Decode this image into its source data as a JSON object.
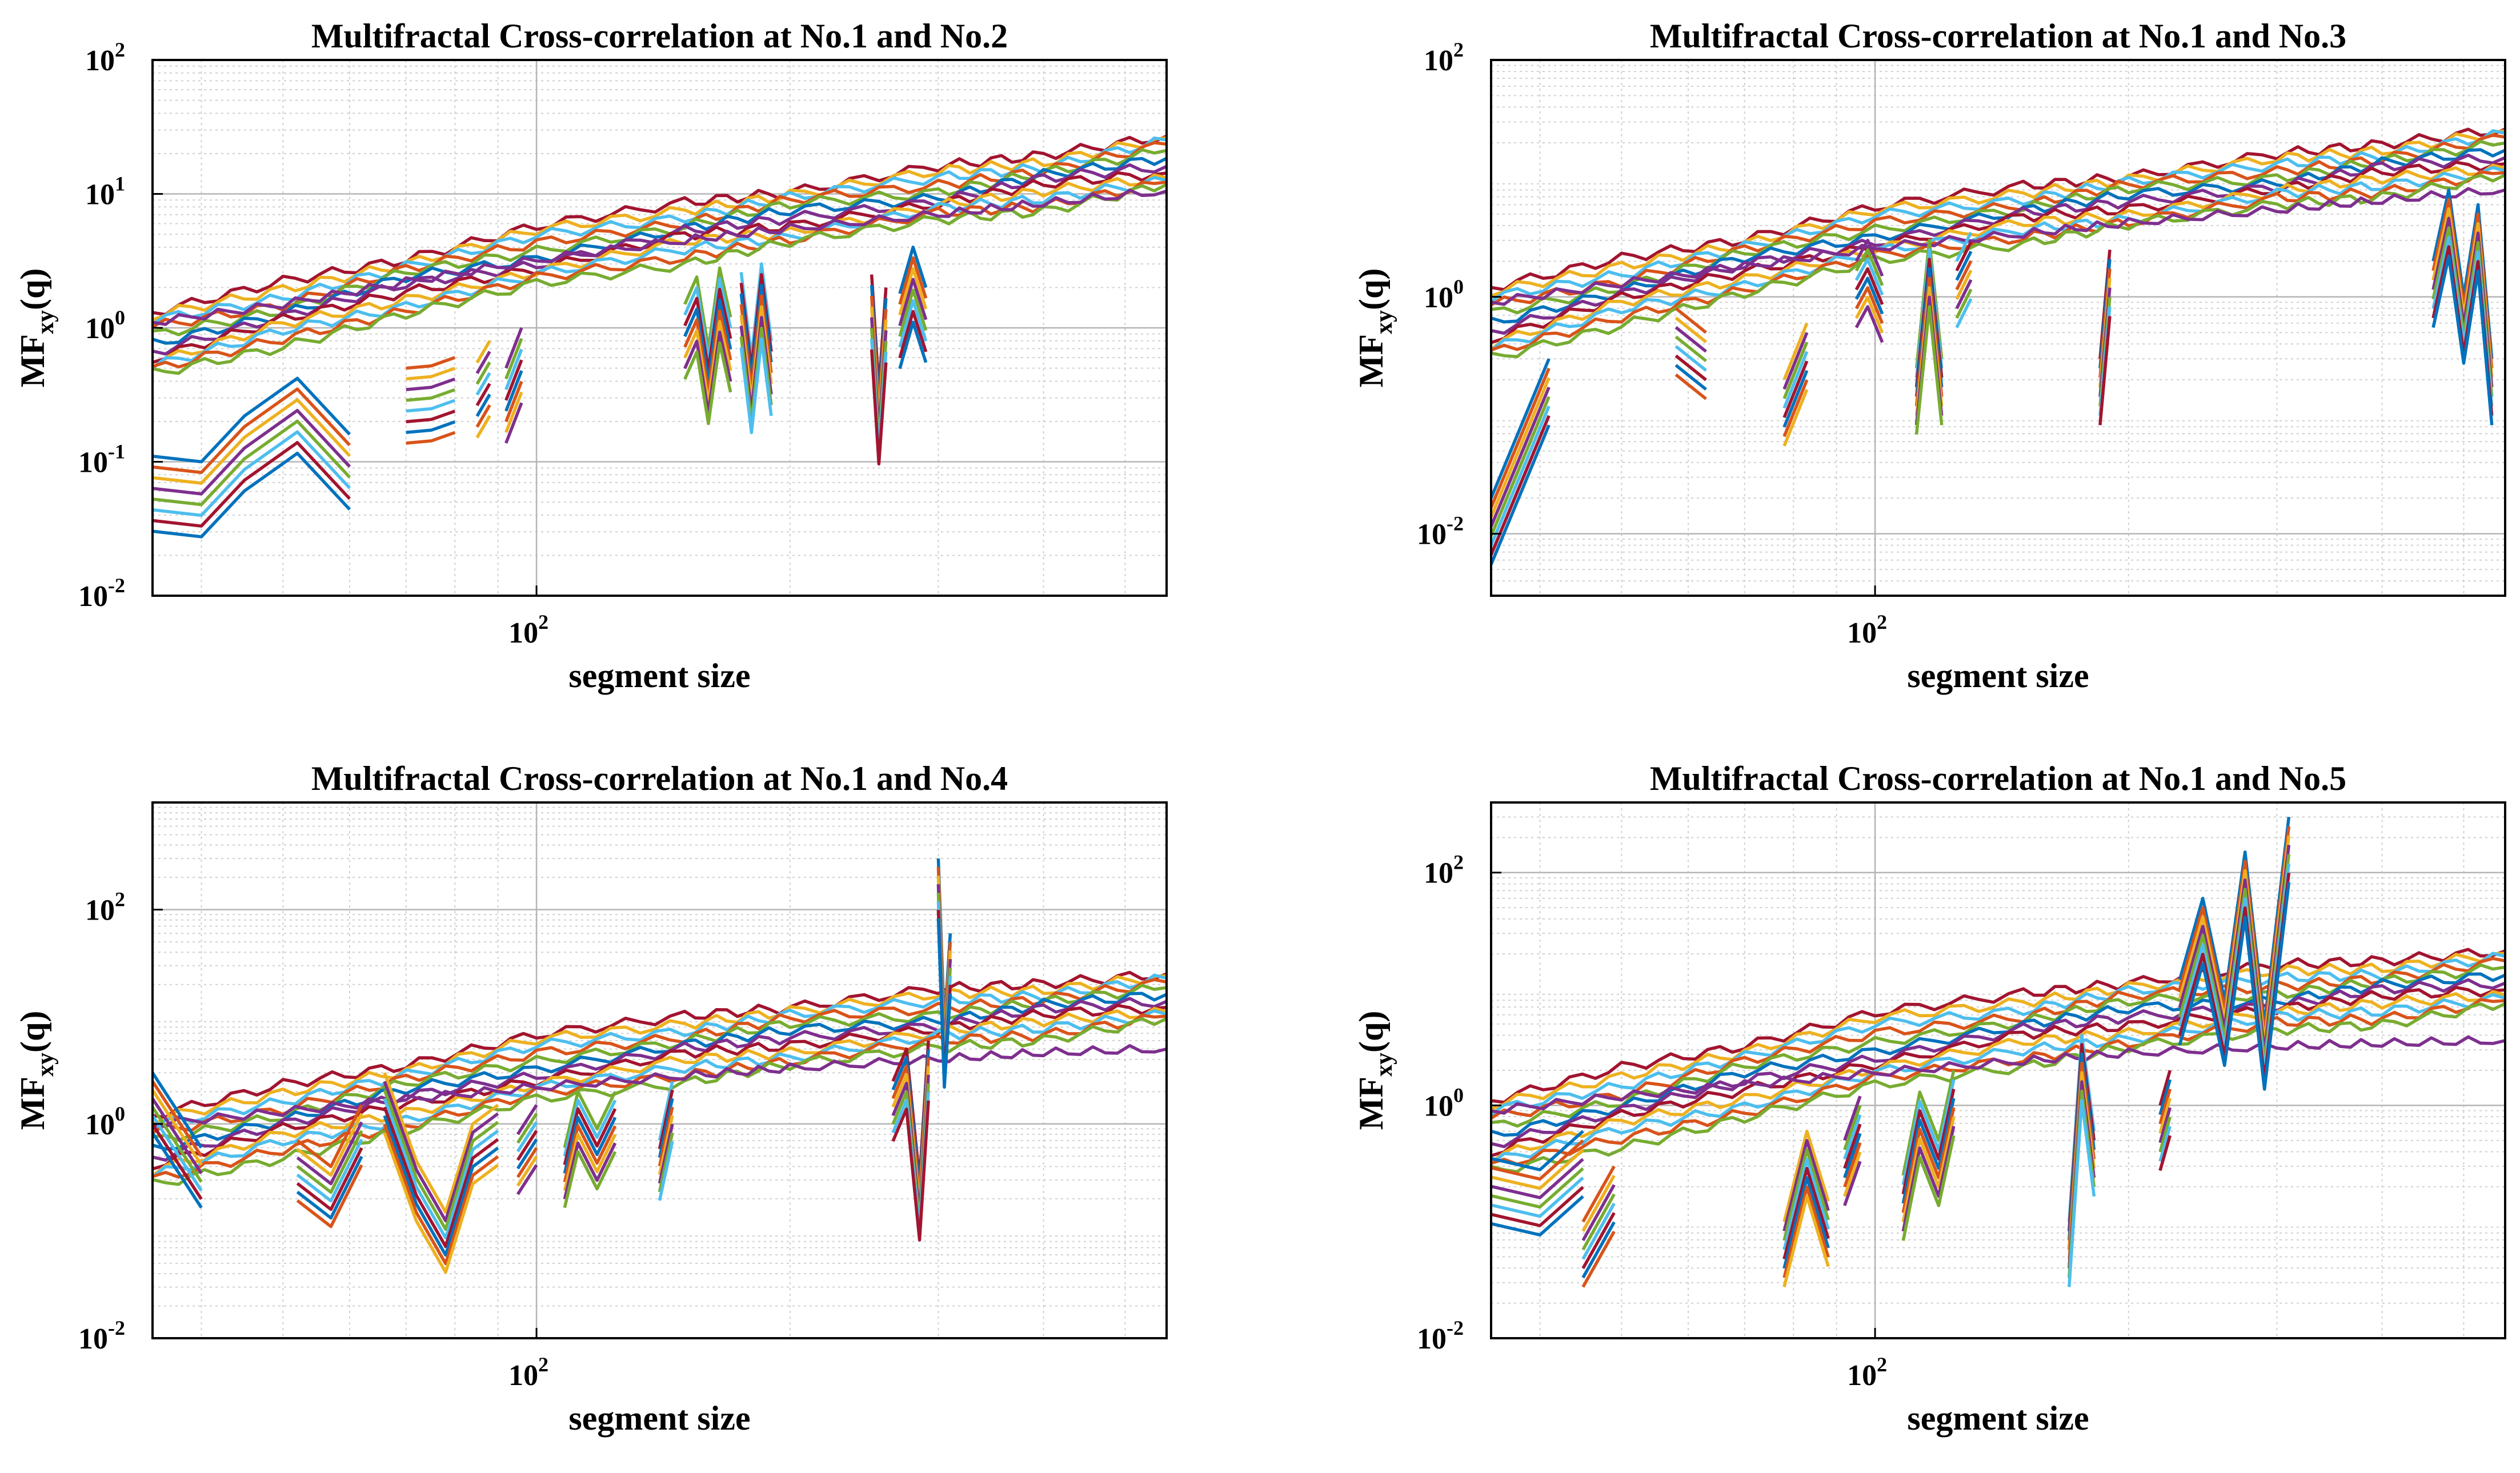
{
  "figure": {
    "colors": [
      "#0072BD",
      "#D95319",
      "#EDB120",
      "#7E2F8E",
      "#77AC30",
      "#4DBEEE",
      "#A2142F"
    ],
    "panels": [
      {
        "chart_data": {
          "type": "line",
          "title": "Multifractal Cross-correlation at No.1 and No.2",
          "xlabel": "segment size",
          "ylabel_main": "MF",
          "ylabel_sub": "xy",
          "ylabel_tail": "(q)",
          "xscale": "log",
          "yscale": "log",
          "xlim": [
            35,
            560
          ],
          "ylim": [
            0.01,
            100
          ],
          "x_ticks": [
            {
              "value": 100,
              "base": "10",
              "exp": "2"
            }
          ],
          "y_ticks": [
            {
              "value": 0.01,
              "base": "10",
              "exp": "-2"
            },
            {
              "value": 0.1,
              "base": "10",
              "exp": "-1"
            },
            {
              "value": 1,
              "base": "10",
              "exp": "0"
            },
            {
              "value": 10,
              "base": "10",
              "exp": "1"
            },
            {
              "value": 100,
              "base": "10",
              "exp": "2"
            }
          ],
          "grid": true,
          "series_note": "Family of MF_xy(q) curves, one per q, colored by cycling MATLAB palette",
          "trend": {
            "x": [
              35,
              50,
              70,
              100,
              150,
              200,
              300,
              400,
              560
            ],
            "top_y": [
              1.3,
              2.1,
              3.5,
              5.5,
              8.5,
              11,
              15,
              20,
              28
            ],
            "bottom_y": [
              0.42,
              0.75,
              1.3,
              2.0,
              3.2,
              4.3,
              6.2,
              8.0,
              11
            ],
            "purple_y": [
              1.1,
              1.5,
              2.2,
              3.2,
              4.5,
              5.5,
              7.0,
              8.5,
              10.5
            ]
          },
          "fragments": [
            {
              "x": [
                35,
                40,
                45,
                52,
                60
              ],
              "y": [
                0.11,
                0.1,
                0.22,
                0.42,
                0.16
              ]
            },
            {
              "x": [
                70,
                75,
                80
              ],
              "y": [
                0.5,
                0.52,
                0.6
              ]
            },
            {
              "x": [
                85,
                88
              ],
              "y": [
                0.55,
                0.8
              ]
            },
            {
              "x": [
                92,
                96
              ],
              "y": [
                0.5,
                1.0
              ]
            },
            {
              "x": [
                150,
                155,
                160,
                165,
                170
              ],
              "y": [
                1.5,
                2.4,
                0.7,
                2.8,
                1.2
              ]
            },
            {
              "x": [
                175,
                180,
                185,
                190
              ],
              "y": [
                2.6,
                0.6,
                3.0,
                0.8
              ]
            },
            {
              "x": [
                250,
                255,
                260
              ],
              "y": [
                2.5,
                0.35,
                2.0
              ]
            },
            {
              "x": [
                270,
                280,
                290
              ],
              "y": [
                1.8,
                4.0,
                2.0
              ]
            }
          ]
        }
      },
      {
        "chart_data": {
          "type": "line",
          "title": "Multifractal Cross-correlation at No.1 and No.3",
          "xlabel": "segment size",
          "ylabel_main": "MF",
          "ylabel_sub": "xy",
          "ylabel_tail": "(q)",
          "xscale": "log",
          "yscale": "log",
          "xlim": [
            35,
            560
          ],
          "ylim": [
            0.003,
            100
          ],
          "x_ticks": [
            {
              "value": 100,
              "base": "10",
              "exp": "2"
            }
          ],
          "y_ticks": [
            {
              "value": 0.01,
              "base": "10",
              "exp": "-2"
            },
            {
              "value": 1,
              "base": "10",
              "exp": "0"
            },
            {
              "value": 100,
              "base": "10",
              "exp": "2"
            }
          ],
          "grid": true,
          "series_note": "Family of MF_xy(q) curves, one per q, colored by cycling MATLAB palette",
          "trend": {
            "x": [
              35,
              50,
              70,
              100,
              150,
              200,
              300,
              400,
              560
            ],
            "top_y": [
              1.2,
              2.0,
              3.3,
              5.5,
              8.5,
              11,
              15,
              20,
              27
            ],
            "bottom_y": [
              0.28,
              0.6,
              1.1,
              1.9,
              3.0,
              4.0,
              5.8,
              7.5,
              10
            ],
            "purple_y": [
              0.9,
              1.3,
              1.8,
              2.6,
              3.4,
              4.2,
              5.4,
              6.5,
              8.0
            ]
          },
          "fragments": [
            {
              "x": [
                35,
                41
              ],
              "y": [
                0.02,
                0.3
              ]
            },
            {
              "x": [
                58,
                63
              ],
              "y": [
                0.8,
                0.5
              ]
            },
            {
              "x": [
                78,
                83
              ],
              "y": [
                0.2,
                0.6
              ]
            },
            {
              "x": [
                95,
                98,
                102
              ],
              "y": [
                2.0,
                3.0,
                1.5
              ]
            },
            {
              "x": [
                112,
                116,
                120
              ],
              "y": [
                0.25,
                3.0,
                0.3
              ]
            },
            {
              "x": [
                125,
                130
              ],
              "y": [
                2.0,
                3.5
              ]
            },
            {
              "x": [
                185,
                190
              ],
              "y": [
                0.3,
                2.5
              ]
            },
            {
              "x": [
                460,
                480,
                500,
                520,
                540
              ],
              "y": [
                2.0,
                8.0,
                1.0,
                6.0,
                0.3
              ]
            }
          ]
        }
      },
      {
        "chart_data": {
          "type": "line",
          "title": "Multifractal Cross-correlation at No.1 and No.4",
          "xlabel": "segment size",
          "ylabel_main": "MF",
          "ylabel_sub": "xy",
          "ylabel_tail": "(q)",
          "xscale": "log",
          "yscale": "log",
          "xlim": [
            35,
            560
          ],
          "ylim": [
            0.01,
            1000
          ],
          "x_ticks": [
            {
              "value": 100,
              "base": "10",
              "exp": "2"
            }
          ],
          "y_ticks": [
            {
              "value": 0.01,
              "base": "10",
              "exp": "-2"
            },
            {
              "value": 1,
              "base": "10",
              "exp": "0"
            },
            {
              "value": 100,
              "base": "10",
              "exp": "2"
            }
          ],
          "grid": true,
          "series_note": "Family of MF_xy(q) curves, one per q, colored by cycling MATLAB palette",
          "trend": {
            "x": [
              35,
              50,
              70,
              100,
              150,
              200,
              300,
              400,
              560
            ],
            "top_y": [
              1.2,
              2.2,
              3.8,
              6.5,
              10,
              13,
              17,
              21,
              26
            ],
            "bottom_y": [
              0.25,
              0.5,
              0.9,
              1.6,
              2.6,
              3.5,
              5.0,
              6.5,
              9.0
            ],
            "purple_y": [
              1.0,
              1.3,
              1.7,
              2.2,
              2.8,
              3.3,
              4.0,
              4.6,
              5.0
            ]
          },
          "fragments": [
            {
              "x": [
                35,
                40
              ],
              "y": [
                3.0,
                0.6
              ]
            },
            {
              "x": [
                52,
                57,
                62
              ],
              "y": [
                0.7,
                0.4,
                1.5
              ]
            },
            {
              "x": [
                66,
                72,
                78,
                84,
                90
              ],
              "y": [
                3.0,
                0.45,
                0.15,
                1.0,
                1.5
              ]
            },
            {
              "x": [
                95,
                100
              ],
              "y": [
                0.8,
                1.5
              ]
            },
            {
              "x": [
                108,
                112,
                118,
                124
              ],
              "y": [
                0.6,
                2.0,
                0.9,
                2.0
              ]
            },
            {
              "x": [
                140,
                145
              ],
              "y": [
                0.7,
                2.5
              ]
            },
            {
              "x": [
                265,
                275,
                285,
                292
              ],
              "y": [
                2.5,
                5.0,
                0.3,
                6.0
              ]
            },
            {
              "x": [
                300,
                305,
                310
              ],
              "y": [
                300,
                8,
                60
              ]
            }
          ]
        }
      },
      {
        "chart_data": {
          "type": "line",
          "title": "Multifractal Cross-correlation at No.1 and No.5",
          "xlabel": "segment size",
          "ylabel_main": "MF",
          "ylabel_sub": "xy",
          "ylabel_tail": "(q)",
          "xscale": "log",
          "yscale": "log",
          "xlim": [
            35,
            560
          ],
          "ylim": [
            0.01,
            400
          ],
          "x_ticks": [
            {
              "value": 100,
              "base": "10",
              "exp": "2"
            }
          ],
          "y_ticks": [
            {
              "value": 0.01,
              "base": "10",
              "exp": "-2"
            },
            {
              "value": 1,
              "base": "10",
              "exp": "0"
            },
            {
              "value": 100,
              "base": "10",
              "exp": "2"
            }
          ],
          "grid": true,
          "series_note": "Family of MF_xy(q) curves, one per q, colored by cycling MATLAB palette",
          "trend": {
            "x": [
              35,
              50,
              70,
              100,
              150,
              200,
              300,
              400,
              560
            ],
            "top_y": [
              1.1,
              2.0,
              3.5,
              6.0,
              9.0,
              12,
              15,
              18,
              22
            ],
            "bottom_y": [
              0.25,
              0.45,
              0.8,
              1.4,
              2.3,
              3.1,
              4.3,
              5.3,
              7.0
            ],
            "purple_y": [
              0.9,
              1.2,
              1.5,
              1.9,
              2.4,
              2.8,
              3.2,
              3.4,
              3.6
            ]
          },
          "fragments": [
            {
              "x": [
                35,
                40,
                45
              ],
              "y": [
                0.35,
                0.28,
                0.6
              ]
            },
            {
              "x": [
                45,
                49
              ],
              "y": [
                0.1,
                0.3
              ]
            },
            {
              "x": [
                78,
                83,
                88
              ],
              "y": [
                0.1,
                0.6,
                0.15
              ]
            },
            {
              "x": [
                92,
                96
              ],
              "y": [
                0.5,
                1.2
              ]
            },
            {
              "x": [
                108,
                113,
                119,
                124
              ],
              "y": [
                0.25,
                1.3,
                0.5,
                2.0
              ]
            },
            {
              "x": [
                170,
                176,
                182
              ],
              "y": [
                0.1,
                4.0,
                0.6
              ]
            },
            {
              "x": [
                218,
                224
              ],
              "y": [
                1.0,
                2.0
              ]
            },
            {
              "x": [
                230,
                245,
                260,
                275,
                290,
                310
              ],
              "y": [
                12,
                60,
                8,
                150,
                5,
                300
              ]
            }
          ]
        }
      }
    ]
  }
}
